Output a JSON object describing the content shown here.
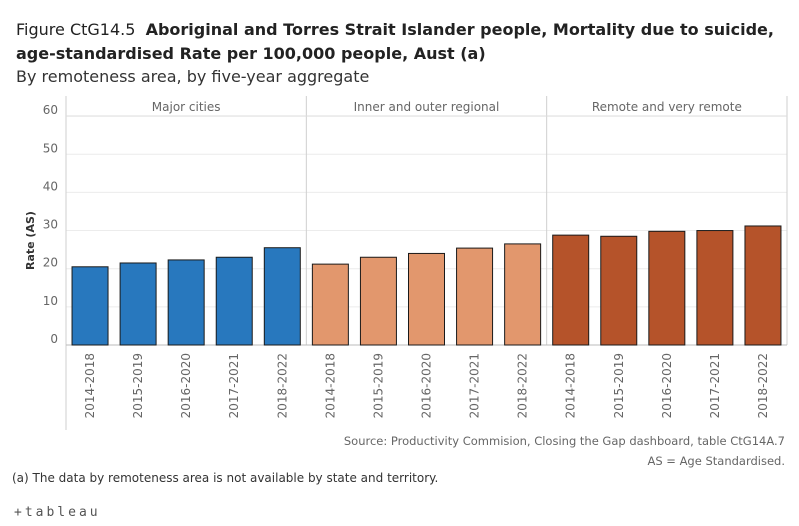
{
  "header": {
    "figure_label": "Figure CtG14.5",
    "title_part1": "Aboriginal and Torres Strait Islander people, Mortality due to suicide,",
    "title_part2": "age-standardised Rate per 100,000 people, Aust (a)",
    "subtitle": "By remoteness area, by five-year aggregate"
  },
  "footer": {
    "source": "Source: Productivity Commision, Closing the Gap dashboard, table CtG14A.7",
    "as_note": "AS = Age Standardised.",
    "footnote": "(a) The data by remoteness area is not available by state and territory.",
    "logo_text": "+tableau"
  },
  "chart_data": {
    "type": "bar",
    "ylabel": "Rate (AS)",
    "ylim": [
      0,
      60
    ],
    "yticks": [
      0,
      10,
      20,
      30,
      40,
      50,
      60
    ],
    "categories": [
      "2014-2018",
      "2015-2019",
      "2016-2020",
      "2017-2021",
      "2018-2022"
    ],
    "panels": [
      {
        "name": "Major cities",
        "color": "#2878be",
        "values": [
          20.5,
          21.5,
          22.3,
          23.0,
          25.5
        ]
      },
      {
        "name": "Inner and outer regional",
        "color": "#e2976d",
        "values": [
          21.2,
          23.0,
          24.0,
          25.4,
          26.5
        ]
      },
      {
        "name": "Remote and very remote",
        "color": "#b5532a",
        "values": [
          28.8,
          28.5,
          29.8,
          30.0,
          31.2
        ]
      }
    ]
  }
}
